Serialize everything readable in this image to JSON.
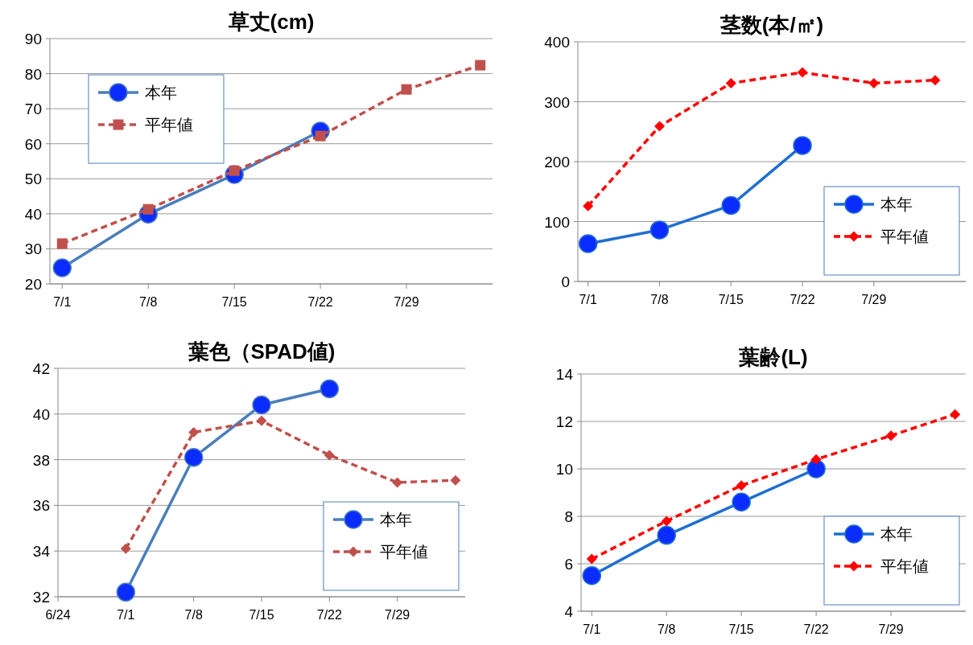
{
  "chart_data": [
    {
      "type": "line",
      "title": "草丈(cm)",
      "xlim": [
        "--06-30",
        "--08-05"
      ],
      "ylim": [
        20,
        90
      ],
      "yticks": [
        20,
        30,
        40,
        50,
        60,
        70,
        80,
        90
      ],
      "xticks": [
        {
          "value": "--07-01",
          "label": "7/1"
        },
        {
          "value": "--07-08",
          "label": "7/8"
        },
        {
          "value": "--07-15",
          "label": "7/15"
        },
        {
          "value": "--07-22",
          "label": "7/22"
        },
        {
          "value": "--07-29",
          "label": "7/29"
        }
      ],
      "grid": "y",
      "legend": "top left",
      "series": [
        {
          "name": "本年",
          "color": "#4a7ebb",
          "marker": "circle",
          "line_style": "solid",
          "x": [
            "--07-01",
            "--07-08",
            "--07-15",
            "--07-22"
          ],
          "values": [
            24.6,
            39.9,
            51.2,
            63.6
          ]
        },
        {
          "name": "平年値",
          "color": "#c0504d",
          "marker": "square",
          "line_style": "dashed",
          "x": [
            "--07-01",
            "--07-08",
            "--07-15",
            "--07-22",
            "--07-29",
            "--08-04"
          ],
          "values": [
            31.5,
            41.3,
            52.3,
            62.2,
            75.5,
            82.4
          ]
        }
      ]
    },
    {
      "type": "line",
      "title": "茎数(本/㎡)",
      "xlim": [
        "--06-30",
        "--08-07"
      ],
      "ylim": [
        0,
        400
      ],
      "yticks": [
        0,
        100,
        200,
        300,
        400
      ],
      "xticks": [
        {
          "value": "--07-01",
          "label": "7/1"
        },
        {
          "value": "--07-08",
          "label": "7/8"
        },
        {
          "value": "--07-15",
          "label": "7/15"
        },
        {
          "value": "--07-22",
          "label": "7/22"
        },
        {
          "value": "--07-29",
          "label": "7/29"
        }
      ],
      "grid": "y",
      "legend": "bottom right",
      "series": [
        {
          "name": "本年",
          "color": "#1f6fd0",
          "marker": "circle",
          "line_style": "solid",
          "x": [
            "--07-01",
            "--07-08",
            "--07-15",
            "--07-22"
          ],
          "values": [
            63,
            86,
            127,
            227
          ]
        },
        {
          "name": "平年値",
          "color": "#ff0000",
          "marker": "diamond",
          "line_style": "dashed",
          "x": [
            "--07-01",
            "--07-08",
            "--07-15",
            "--07-22",
            "--07-29",
            "--08-04"
          ],
          "values": [
            126,
            259,
            331,
            349,
            331,
            336
          ]
        }
      ]
    },
    {
      "type": "line",
      "title": "葉色（SPAD値)",
      "xlim": [
        "--06-24",
        "--08-05"
      ],
      "ylim": [
        32,
        42
      ],
      "yticks": [
        32,
        34,
        36,
        38,
        40,
        42
      ],
      "xticks": [
        {
          "value": "--06-24",
          "label": "6/24"
        },
        {
          "value": "--07-01",
          "label": "7/1"
        },
        {
          "value": "--07-08",
          "label": "7/8"
        },
        {
          "value": "--07-15",
          "label": "7/15"
        },
        {
          "value": "--07-22",
          "label": "7/22"
        },
        {
          "value": "--07-29",
          "label": "7/29"
        }
      ],
      "grid": "y",
      "legend": "bottom right",
      "series": [
        {
          "name": "本年",
          "color": "#4a7ebb",
          "marker": "circle",
          "line_style": "solid",
          "x": [
            "--07-01",
            "--07-08",
            "--07-15",
            "--07-22"
          ],
          "values": [
            32.2,
            38.1,
            40.4,
            41.1
          ]
        },
        {
          "name": "平年値",
          "color": "#c0504d",
          "marker": "diamond",
          "line_style": "dashed",
          "x": [
            "--07-01",
            "--07-08",
            "--07-15",
            "--07-22",
            "--07-29",
            "--08-04"
          ],
          "values": [
            34.1,
            39.2,
            39.7,
            38.2,
            37.0,
            37.1
          ]
        }
      ]
    },
    {
      "type": "line",
      "title": "葉齢(L)",
      "xlim": [
        "--06-30",
        "--08-05"
      ],
      "ylim": [
        4,
        14
      ],
      "yticks": [
        4,
        6,
        8,
        10,
        12,
        14
      ],
      "xticks": [
        {
          "value": "--07-01",
          "label": "7/1"
        },
        {
          "value": "--07-08",
          "label": "7/8"
        },
        {
          "value": "--07-15",
          "label": "7/15"
        },
        {
          "value": "--07-22",
          "label": "7/22"
        },
        {
          "value": "--07-29",
          "label": "7/29"
        }
      ],
      "grid": "y",
      "legend": "bottom right",
      "series": [
        {
          "name": "本年",
          "color": "#1f6fd0",
          "marker": "circle",
          "line_style": "solid",
          "x": [
            "--07-01",
            "--07-08",
            "--07-15",
            "--07-22"
          ],
          "values": [
            5.5,
            7.2,
            8.6,
            10.0
          ]
        },
        {
          "name": "平年値",
          "color": "#ff0000",
          "marker": "diamond",
          "line_style": "dashed",
          "x": [
            "--07-01",
            "--07-08",
            "--07-15",
            "--07-22",
            "--07-29",
            "--08-04"
          ],
          "values": [
            6.2,
            7.8,
            9.3,
            10.4,
            11.4,
            12.3
          ]
        }
      ]
    }
  ]
}
